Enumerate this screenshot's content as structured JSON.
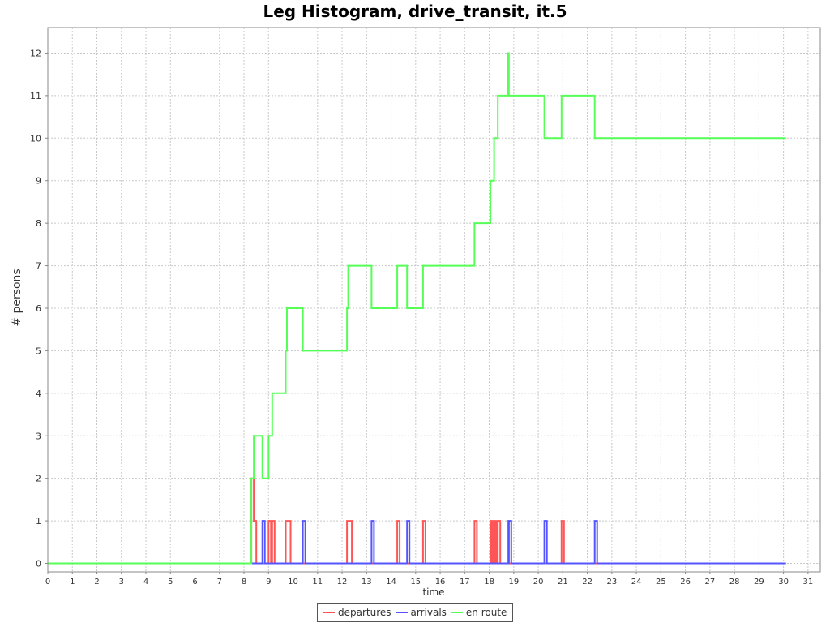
{
  "chart_data": {
    "type": "line",
    "title": "Leg Histogram, drive_transit, it.5",
    "xlabel": "time",
    "ylabel": "# persons",
    "xlim": [
      0,
      31.5
    ],
    "ylim": [
      -0.2,
      12.6
    ],
    "x_ticks": [
      0,
      1,
      2,
      3,
      4,
      5,
      6,
      7,
      8,
      9,
      10,
      11,
      12,
      13,
      14,
      15,
      16,
      17,
      18,
      19,
      20,
      21,
      22,
      23,
      24,
      25,
      26,
      27,
      28,
      29,
      30,
      31
    ],
    "y_ticks": [
      0,
      1,
      2,
      3,
      4,
      5,
      6,
      7,
      8,
      9,
      10,
      11,
      12
    ],
    "grid": true,
    "legend_position": "bottom",
    "series": [
      {
        "name": "departures",
        "color": "#ff5555",
        "step": true,
        "points": [
          [
            0,
            0
          ],
          [
            8.3,
            0
          ],
          [
            8.3,
            2
          ],
          [
            8.4,
            2
          ],
          [
            8.4,
            1
          ],
          [
            8.5,
            1
          ],
          [
            8.5,
            0
          ],
          [
            9.0,
            0
          ],
          [
            9.0,
            1
          ],
          [
            9.1,
            1
          ],
          [
            9.1,
            0
          ],
          [
            9.15,
            0
          ],
          [
            9.15,
            1
          ],
          [
            9.25,
            1
          ],
          [
            9.25,
            0
          ],
          [
            9.7,
            0
          ],
          [
            9.7,
            1
          ],
          [
            9.9,
            1
          ],
          [
            9.9,
            0
          ],
          [
            12.2,
            0
          ],
          [
            12.2,
            1
          ],
          [
            12.4,
            1
          ],
          [
            12.4,
            0
          ],
          [
            14.25,
            0
          ],
          [
            14.25,
            1
          ],
          [
            14.35,
            1
          ],
          [
            14.35,
            0
          ],
          [
            15.3,
            0
          ],
          [
            15.3,
            1
          ],
          [
            15.4,
            1
          ],
          [
            15.4,
            0
          ],
          [
            17.4,
            0
          ],
          [
            17.4,
            1
          ],
          [
            17.5,
            1
          ],
          [
            17.5,
            0
          ],
          [
            18.05,
            0
          ],
          [
            18.05,
            1
          ],
          [
            18.1,
            1
          ],
          [
            18.1,
            0
          ],
          [
            18.15,
            0
          ],
          [
            18.15,
            1
          ],
          [
            18.2,
            1
          ],
          [
            18.2,
            0
          ],
          [
            18.25,
            0
          ],
          [
            18.25,
            1
          ],
          [
            18.3,
            1
          ],
          [
            18.3,
            0
          ],
          [
            18.35,
            0
          ],
          [
            18.35,
            1
          ],
          [
            18.45,
            1
          ],
          [
            18.45,
            0
          ],
          [
            18.75,
            0
          ],
          [
            18.75,
            1
          ],
          [
            18.8,
            1
          ],
          [
            18.8,
            0
          ],
          [
            20.95,
            0
          ],
          [
            20.95,
            1
          ],
          [
            21.05,
            1
          ],
          [
            21.05,
            0
          ],
          [
            30.1,
            0
          ]
        ]
      },
      {
        "name": "arrivals",
        "color": "#5555ff",
        "step": true,
        "points": [
          [
            0,
            0
          ],
          [
            8.75,
            0
          ],
          [
            8.75,
            1
          ],
          [
            8.85,
            1
          ],
          [
            8.85,
            0
          ],
          [
            10.4,
            0
          ],
          [
            10.4,
            1
          ],
          [
            10.5,
            1
          ],
          [
            10.5,
            0
          ],
          [
            13.2,
            0
          ],
          [
            13.2,
            1
          ],
          [
            13.3,
            1
          ],
          [
            13.3,
            0
          ],
          [
            14.65,
            0
          ],
          [
            14.65,
            1
          ],
          [
            14.75,
            1
          ],
          [
            14.75,
            0
          ],
          [
            18.8,
            0
          ],
          [
            18.8,
            1
          ],
          [
            18.9,
            1
          ],
          [
            18.9,
            0
          ],
          [
            20.25,
            0
          ],
          [
            20.25,
            1
          ],
          [
            20.35,
            1
          ],
          [
            20.35,
            0
          ],
          [
            22.3,
            0
          ],
          [
            22.3,
            1
          ],
          [
            22.4,
            1
          ],
          [
            22.4,
            0
          ],
          [
            30.1,
            0
          ]
        ]
      },
      {
        "name": "en route",
        "color": "#55ff55",
        "step": true,
        "points": [
          [
            0,
            0
          ],
          [
            8.3,
            0
          ],
          [
            8.3,
            2
          ],
          [
            8.4,
            2
          ],
          [
            8.4,
            3
          ],
          [
            8.75,
            3
          ],
          [
            8.75,
            2
          ],
          [
            9.0,
            2
          ],
          [
            9.0,
            3
          ],
          [
            9.15,
            3
          ],
          [
            9.15,
            4
          ],
          [
            9.7,
            4
          ],
          [
            9.7,
            5
          ],
          [
            9.75,
            5
          ],
          [
            9.75,
            6
          ],
          [
            10.4,
            6
          ],
          [
            10.4,
            5
          ],
          [
            12.2,
            5
          ],
          [
            12.2,
            6
          ],
          [
            12.25,
            6
          ],
          [
            12.25,
            7
          ],
          [
            13.2,
            7
          ],
          [
            13.2,
            6
          ],
          [
            14.25,
            6
          ],
          [
            14.25,
            7
          ],
          [
            14.65,
            7
          ],
          [
            14.65,
            6
          ],
          [
            15.3,
            6
          ],
          [
            15.3,
            7
          ],
          [
            17.4,
            7
          ],
          [
            17.4,
            8
          ],
          [
            18.05,
            8
          ],
          [
            18.05,
            9
          ],
          [
            18.2,
            9
          ],
          [
            18.2,
            10
          ],
          [
            18.35,
            10
          ],
          [
            18.35,
            11
          ],
          [
            18.75,
            11
          ],
          [
            18.75,
            12
          ],
          [
            18.8,
            12
          ],
          [
            18.8,
            11
          ],
          [
            20.25,
            11
          ],
          [
            20.25,
            10
          ],
          [
            20.95,
            10
          ],
          [
            20.95,
            11
          ],
          [
            22.3,
            11
          ],
          [
            22.3,
            10
          ],
          [
            30.1,
            10
          ]
        ]
      }
    ]
  }
}
